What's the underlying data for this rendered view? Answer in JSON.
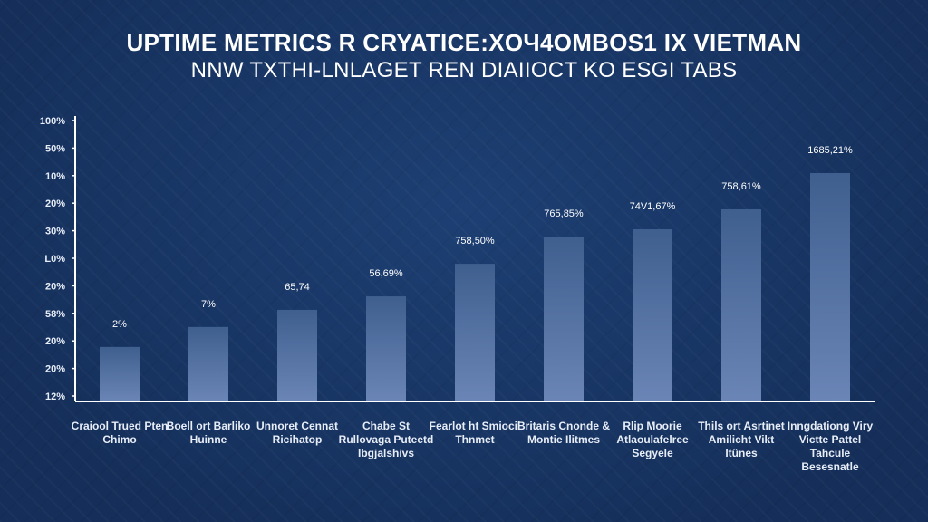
{
  "chart_data": {
    "type": "bar",
    "title": "UPTIME METRICS R CRYATICE:XOЧ4OMBOS1 IX VIETMAN",
    "subtitle": "NNW TXTHI-LNLAGET REN DIAIIOCT KO ESGI TABS",
    "xlabel": "",
    "ylabel": "",
    "ylim": [
      0,
      100
    ],
    "grid": false,
    "y_tick_labels": [
      "100%",
      "50%",
      "10%",
      "20%",
      "30%",
      "L0%",
      "20%",
      "58%",
      "20%",
      "20%",
      "12%"
    ],
    "categories": [
      "Craiool Trued Pten Chimo",
      "Boell ort Barliko Huinne",
      "Unnoret Cennat Ricihatop",
      "Chabe St Rullovaga Puteetd Ibgjalshivs",
      "Fearlot ht Smiocil Thnmet",
      "Britaris Cnonde & Montie Ilitmes",
      "Rlip Moorie Atlaoulafelree Segyele",
      "Thils ort Asrtinet Amilicht Vikt Itünes",
      "Inngdationg Viry Victte Pattel Tahcule Besesnatle"
    ],
    "values": [
      19.4,
      26.5,
      32.6,
      37.4,
      49.0,
      58.7,
      61.3,
      68.4,
      81.3
    ],
    "data_labels": [
      "2%",
      "7%",
      "65,74",
      "56,69%",
      "758,50%",
      "765,85%",
      "74V1,67%",
      "758,61%",
      "1685,21%"
    ],
    "colors": {
      "bar_top": "#3f5f8f",
      "bar_bottom": "#6a85b6",
      "axis": "#ffffff",
      "background": "#173564"
    }
  }
}
